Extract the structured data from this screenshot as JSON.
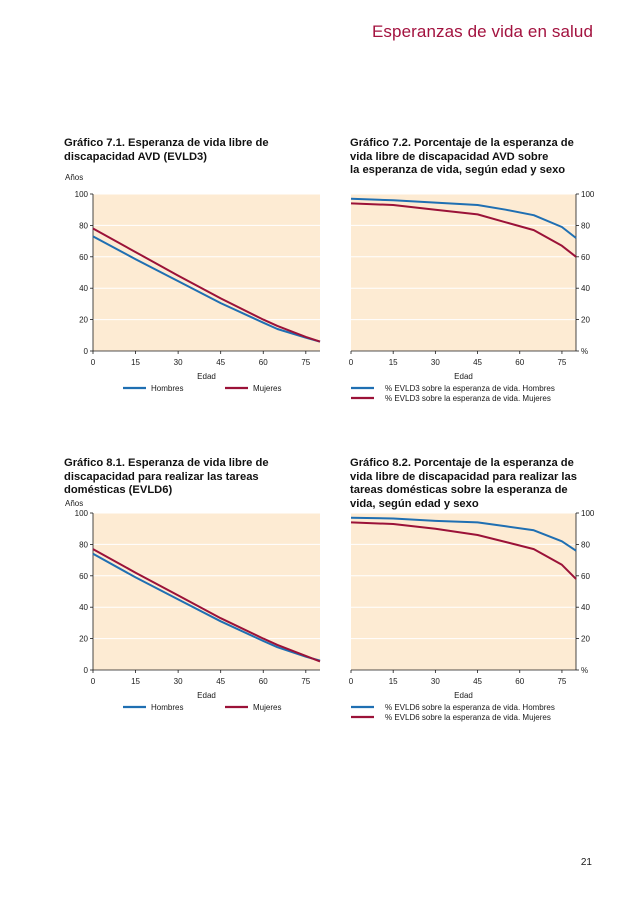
{
  "header": {
    "title": "Esperanzas de vida en salud"
  },
  "page_number": "21",
  "chart_data": [
    {
      "id": "c71",
      "type": "line",
      "title_lines": [
        "Gráfico 7.1. Esperanza de vida libre de",
        "discapacidad AVD (EVLD3)"
      ],
      "ylabel": "Años",
      "xlabel": "Edad",
      "y_axis_side": "left",
      "xlim": [
        0,
        80
      ],
      "ylim": [
        0,
        100
      ],
      "x_ticks": [
        "0",
        "15",
        "30",
        "45",
        "60",
        "75"
      ],
      "y_ticks": [
        "0",
        "20",
        "40",
        "60",
        "80",
        "100"
      ],
      "x": [
        0,
        15,
        30,
        45,
        60,
        65,
        75,
        80
      ],
      "series": [
        {
          "name": "Hombres",
          "color": "#1f6fb2",
          "values": [
            73,
            58.5,
            44.5,
            30.5,
            18,
            14,
            8.5,
            6
          ]
        },
        {
          "name": "Mujeres",
          "color": "#9b1238",
          "values": [
            78,
            63,
            48,
            33.5,
            20,
            16,
            9,
            6
          ]
        }
      ],
      "legend_layout": "row"
    },
    {
      "id": "c72",
      "type": "line",
      "title_lines": [
        "Gráfico 7.2. Porcentaje de la esperanza de",
        "vida libre de discapacidad AVD sobre",
        "la esperanza de vida, según edad y sexo"
      ],
      "ylabel": "",
      "xlabel": "Edad",
      "y_axis_side": "right",
      "y_unit_label": "%",
      "xlim": [
        0,
        80
      ],
      "ylim": [
        0,
        100
      ],
      "x_ticks": [
        "0",
        "15",
        "30",
        "45",
        "60",
        "75"
      ],
      "y_ticks": [
        "%",
        "20",
        "40",
        "60",
        "80",
        "100"
      ],
      "x": [
        0,
        15,
        30,
        45,
        55,
        65,
        75,
        80
      ],
      "series": [
        {
          "name": "% EVLD3 sobre la esperanza de vida. Hombres",
          "color": "#1f6fb2",
          "values": [
            97,
            96,
            94.5,
            93,
            90,
            86.5,
            79,
            72
          ]
        },
        {
          "name": "% EVLD3 sobre la esperanza de vida. Mujeres",
          "color": "#9b1238",
          "values": [
            94,
            93,
            90,
            87,
            82,
            77,
            67,
            60
          ]
        }
      ],
      "legend_layout": "column"
    },
    {
      "id": "c81",
      "type": "line",
      "title_lines": [
        "Gráfico 8.1. Esperanza de vida libre de",
        "discapacidad para realizar las tareas",
        "domésticas (EVLD6)"
      ],
      "ylabel": "Años",
      "xlabel": "Edad",
      "y_axis_side": "left",
      "xlim": [
        0,
        80
      ],
      "ylim": [
        0,
        100
      ],
      "x_ticks": [
        "0",
        "15",
        "30",
        "45",
        "60",
        "75"
      ],
      "y_ticks": [
        "0",
        "20",
        "40",
        "60",
        "80",
        "100"
      ],
      "x": [
        0,
        15,
        30,
        45,
        60,
        65,
        75,
        80
      ],
      "series": [
        {
          "name": "Hombres",
          "color": "#1f6fb2",
          "values": [
            74,
            59,
            45,
            31,
            18.5,
            14.5,
            8.5,
            6
          ]
        },
        {
          "name": "Mujeres",
          "color": "#9b1238",
          "values": [
            77,
            62,
            47.5,
            33,
            20,
            16,
            9,
            5.5
          ]
        }
      ],
      "legend_layout": "row"
    },
    {
      "id": "c82",
      "type": "line",
      "title_lines": [
        "Gráfico 8.2. Porcentaje de la esperanza de",
        "vida libre de discapacidad para realizar las",
        "tareas domésticas sobre la esperanza de",
        "vida, según edad y sexo"
      ],
      "ylabel": "",
      "xlabel": "Edad",
      "y_axis_side": "right",
      "y_unit_label": "%",
      "xlim": [
        0,
        80
      ],
      "ylim": [
        0,
        100
      ],
      "x_ticks": [
        "0",
        "15",
        "30",
        "45",
        "60",
        "75"
      ],
      "y_ticks": [
        "%",
        "20",
        "40",
        "60",
        "80",
        "100"
      ],
      "x": [
        0,
        15,
        30,
        45,
        55,
        65,
        75,
        80
      ],
      "series": [
        {
          "name": "% EVLD6 sobre la esperanza de vida. Hombres",
          "color": "#1f6fb2",
          "values": [
            97,
            96.5,
            95,
            94,
            91.5,
            89,
            82,
            76
          ]
        },
        {
          "name": "% EVLD6 sobre la esperanza de vida. Mujeres",
          "color": "#9b1238",
          "values": [
            94,
            93,
            90,
            86,
            81.5,
            77,
            67,
            58
          ]
        }
      ],
      "legend_layout": "column"
    }
  ]
}
